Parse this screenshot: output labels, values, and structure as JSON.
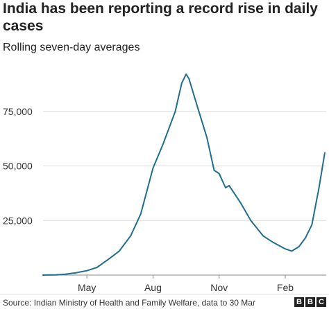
{
  "chart_data": {
    "type": "line",
    "title": "India has been reporting a record rise in daily cases",
    "subtitle": "Rolling seven-day averages",
    "xlabel": "",
    "ylabel": "",
    "x_range": [
      "2020-03-01",
      "2021-03-30"
    ],
    "ylim": [
      0,
      100000
    ],
    "y_ticks": [
      25000,
      50000,
      75000
    ],
    "y_tick_labels": [
      "25,000",
      "50,000",
      "75,000"
    ],
    "x_ticks": [
      {
        "date": "2020-05-01",
        "label": "May"
      },
      {
        "date": "2020-08-01",
        "label": "Aug"
      },
      {
        "date": "2020-11-01",
        "label": "Nov"
      },
      {
        "date": "2021-02-01",
        "label": "Feb"
      }
    ],
    "grid": "horizontal",
    "line_color": "#1f6e8c",
    "series": [
      {
        "values": [
          {
            "x": "2020-03-01",
            "y": 0
          },
          {
            "x": "2020-03-20",
            "y": 100
          },
          {
            "x": "2020-04-01",
            "y": 400
          },
          {
            "x": "2020-04-15",
            "y": 1000
          },
          {
            "x": "2020-05-01",
            "y": 2000
          },
          {
            "x": "2020-05-15",
            "y": 3500
          },
          {
            "x": "2020-06-01",
            "y": 7500
          },
          {
            "x": "2020-06-15",
            "y": 11000
          },
          {
            "x": "2020-07-01",
            "y": 18000
          },
          {
            "x": "2020-07-15",
            "y": 28000
          },
          {
            "x": "2020-08-01",
            "y": 49000
          },
          {
            "x": "2020-08-15",
            "y": 60000
          },
          {
            "x": "2020-09-01",
            "y": 75000
          },
          {
            "x": "2020-09-10",
            "y": 88000
          },
          {
            "x": "2020-09-16",
            "y": 92000
          },
          {
            "x": "2020-09-20",
            "y": 90000
          },
          {
            "x": "2020-10-01",
            "y": 78000
          },
          {
            "x": "2020-10-15",
            "y": 63000
          },
          {
            "x": "2020-10-25",
            "y": 48000
          },
          {
            "x": "2020-11-01",
            "y": 46500
          },
          {
            "x": "2020-11-10",
            "y": 40000
          },
          {
            "x": "2020-11-15",
            "y": 41000
          },
          {
            "x": "2020-12-01",
            "y": 33000
          },
          {
            "x": "2020-12-15",
            "y": 25000
          },
          {
            "x": "2021-01-01",
            "y": 18000
          },
          {
            "x": "2021-01-15",
            "y": 15000
          },
          {
            "x": "2021-02-01",
            "y": 12000
          },
          {
            "x": "2021-02-10",
            "y": 11000
          },
          {
            "x": "2021-02-20",
            "y": 13000
          },
          {
            "x": "2021-03-01",
            "y": 17000
          },
          {
            "x": "2021-03-10",
            "y": 23000
          },
          {
            "x": "2021-03-20",
            "y": 40000
          },
          {
            "x": "2021-03-28",
            "y": 56000
          }
        ]
      }
    ]
  },
  "source_text": "Source: Indian Ministry of Health and Family Welfare, data to 30 Mar",
  "logo": {
    "letters": [
      "B",
      "B",
      "C"
    ]
  }
}
